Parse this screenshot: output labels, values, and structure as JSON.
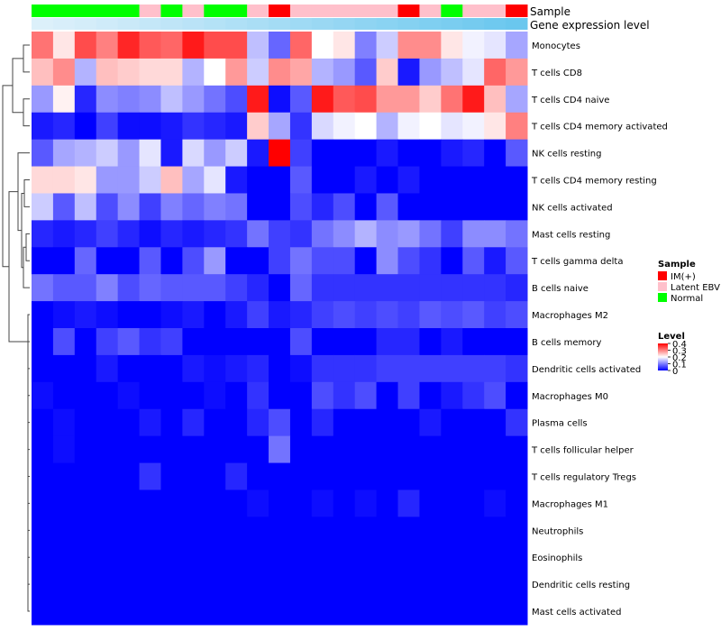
{
  "chart_data": {
    "type": "heatmap",
    "annotation_labels": {
      "sample": "Sample",
      "gene_expression": "Gene expression level"
    },
    "sample_groups": [
      "Normal",
      "Normal",
      "Normal",
      "Normal",
      "Normal",
      "Latent EBV",
      "Normal",
      "Latent EBV",
      "Normal",
      "Normal",
      "Latent EBV",
      "IM(+)",
      "Latent EBV",
      "Latent EBV",
      "Latent EBV",
      "Latent EBV",
      "Latent EBV",
      "IM(+)",
      "Latent EBV",
      "Normal",
      "Latent EBV",
      "Latent EBV",
      "IM(+)"
    ],
    "gene_expression_level": [
      0.05,
      0.08,
      0.11,
      0.15,
      0.19,
      0.23,
      0.27,
      0.31,
      0.35,
      0.39,
      0.43,
      0.47,
      0.51,
      0.55,
      0.59,
      0.63,
      0.67,
      0.71,
      0.75,
      0.79,
      0.83,
      0.87,
      0.91
    ],
    "row_labels": [
      "Monocytes",
      "T cells CD8",
      "T cells CD4 naive",
      "T cells CD4 memory activated",
      "NK cells resting",
      "T cells CD4 memory resting",
      "NK cells activated",
      "Mast cells resting",
      "T cells gamma delta",
      "B cells naive",
      "Macrophages M2",
      "B cells memory",
      "Dendritic cells activated",
      "Macrophages M0",
      "Plasma cells",
      "T cells follicular helper",
      "T cells regulatory  Tregs",
      "Macrophages M1",
      "Neutrophils",
      "Eosinophils",
      "Dendritic cells resting",
      "Mast cells activated"
    ],
    "values": [
      [
        0.31,
        0.22,
        0.34,
        0.3,
        0.37,
        0.33,
        0.32,
        0.38,
        0.34,
        0.34,
        0.15,
        0.08,
        0.32,
        0.2,
        0.22,
        0.1,
        0.16,
        0.29,
        0.29,
        0.22,
        0.19,
        0.18,
        0.13
      ],
      [
        0.25,
        0.29,
        0.14,
        0.25,
        0.24,
        0.23,
        0.23,
        0.14,
        0.2,
        0.28,
        0.16,
        0.29,
        0.27,
        0.14,
        0.12,
        0.07,
        0.24,
        0.02,
        0.12,
        0.15,
        0.18,
        0.32,
        0.28
      ],
      [
        0.12,
        0.21,
        0.03,
        0.11,
        0.1,
        0.11,
        0.15,
        0.12,
        0.09,
        0.06,
        0.38,
        0.01,
        0.07,
        0.38,
        0.33,
        0.34,
        0.28,
        0.28,
        0.24,
        0.31,
        0.38,
        0.25,
        0.13
      ],
      [
        0.02,
        0.03,
        0.0,
        0.05,
        0.01,
        0.01,
        0.02,
        0.04,
        0.03,
        0.02,
        0.24,
        0.13,
        0.04,
        0.17,
        0.19,
        0.2,
        0.14,
        0.19,
        0.2,
        0.18,
        0.19,
        0.22,
        0.3
      ],
      [
        0.07,
        0.13,
        0.14,
        0.16,
        0.12,
        0.18,
        0.02,
        0.17,
        0.12,
        0.16,
        0.02,
        0.4,
        0.05,
        0.0,
        0.0,
        0.0,
        0.02,
        0.0,
        0.0,
        0.02,
        0.03,
        0.0,
        0.07
      ],
      [
        0.23,
        0.23,
        0.22,
        0.12,
        0.12,
        0.16,
        0.25,
        0.13,
        0.18,
        0.02,
        0.0,
        0.0,
        0.07,
        0.0,
        0.0,
        0.02,
        0.0,
        0.02,
        0.0,
        0.0,
        0.0,
        0.0,
        0.0
      ],
      [
        0.16,
        0.07,
        0.15,
        0.06,
        0.11,
        0.05,
        0.1,
        0.08,
        0.1,
        0.09,
        0.0,
        0.0,
        0.06,
        0.03,
        0.06,
        0.0,
        0.07,
        0.0,
        0.0,
        0.0,
        0.0,
        0.0,
        0.0
      ],
      [
        0.03,
        0.02,
        0.03,
        0.05,
        0.03,
        0.01,
        0.03,
        0.02,
        0.03,
        0.04,
        0.09,
        0.05,
        0.04,
        0.09,
        0.11,
        0.14,
        0.11,
        0.12,
        0.09,
        0.05,
        0.11,
        0.11,
        0.09
      ],
      [
        0.0,
        0.0,
        0.08,
        0.0,
        0.0,
        0.07,
        0.0,
        0.06,
        0.12,
        0.0,
        0.0,
        0.05,
        0.09,
        0.06,
        0.06,
        0.0,
        0.11,
        0.06,
        0.04,
        0.0,
        0.07,
        0.02,
        0.07
      ],
      [
        0.09,
        0.07,
        0.07,
        0.1,
        0.06,
        0.08,
        0.07,
        0.07,
        0.07,
        0.05,
        0.03,
        0.0,
        0.08,
        0.04,
        0.04,
        0.04,
        0.04,
        0.04,
        0.04,
        0.04,
        0.04,
        0.04,
        0.03
      ],
      [
        0.0,
        0.01,
        0.02,
        0.01,
        0.0,
        0.0,
        0.01,
        0.02,
        0.0,
        0.02,
        0.05,
        0.02,
        0.03,
        0.05,
        0.06,
        0.05,
        0.06,
        0.05,
        0.07,
        0.06,
        0.07,
        0.05,
        0.06
      ],
      [
        0.0,
        0.06,
        0.0,
        0.05,
        0.07,
        0.04,
        0.05,
        0.0,
        0.0,
        0.0,
        0.0,
        0.0,
        0.06,
        0.0,
        0.0,
        0.0,
        0.03,
        0.03,
        0.0,
        0.02,
        0.0,
        0.0,
        0.0
      ],
      [
        0.0,
        0.0,
        0.0,
        0.02,
        0.0,
        0.0,
        0.0,
        0.02,
        0.01,
        0.02,
        0.03,
        0.0,
        0.01,
        0.04,
        0.04,
        0.04,
        0.05,
        0.05,
        0.05,
        0.05,
        0.05,
        0.05,
        0.04
      ],
      [
        0.01,
        0.0,
        0.0,
        0.0,
        0.01,
        0.0,
        0.0,
        0.0,
        0.01,
        0.0,
        0.04,
        0.0,
        0.0,
        0.06,
        0.04,
        0.06,
        0.0,
        0.05,
        0.0,
        0.02,
        0.04,
        0.06,
        0.0
      ],
      [
        0.0,
        0.01,
        0.0,
        0.0,
        0.0,
        0.02,
        0.0,
        0.03,
        0.0,
        0.0,
        0.03,
        0.06,
        0.0,
        0.03,
        0.0,
        0.0,
        0.0,
        0.0,
        0.02,
        0.0,
        0.0,
        0.0,
        0.04
      ],
      [
        0.0,
        0.01,
        0.0,
        0.0,
        0.0,
        0.0,
        0.0,
        0.0,
        0.0,
        0.0,
        0.0,
        0.09,
        0.0,
        0.0,
        0.0,
        0.0,
        0.0,
        0.0,
        0.0,
        0.0,
        0.0,
        0.0,
        0.0
      ],
      [
        0.0,
        0.0,
        0.0,
        0.0,
        0.0,
        0.04,
        0.0,
        0.0,
        0.0,
        0.03,
        0.0,
        0.0,
        0.0,
        0.0,
        0.0,
        0.0,
        0.0,
        0.0,
        0.0,
        0.0,
        0.0,
        0.0,
        0.0
      ],
      [
        0.0,
        0.0,
        0.0,
        0.0,
        0.0,
        0.0,
        0.0,
        0.0,
        0.0,
        0.0,
        0.01,
        0.0,
        0.0,
        0.01,
        0.0,
        0.01,
        0.0,
        0.03,
        0.0,
        0.0,
        0.0,
        0.01,
        0.0
      ],
      [
        0.0,
        0.0,
        0.0,
        0.0,
        0.0,
        0.0,
        0.0,
        0.0,
        0.0,
        0.0,
        0.0,
        0.0,
        0.0,
        0.0,
        0.0,
        0.0,
        0.0,
        0.0,
        0.0,
        0.0,
        0.0,
        0.0,
        0.0
      ],
      [
        0.0,
        0.0,
        0.0,
        0.0,
        0.0,
        0.0,
        0.0,
        0.0,
        0.0,
        0.0,
        0.0,
        0.0,
        0.0,
        0.0,
        0.0,
        0.0,
        0.0,
        0.0,
        0.0,
        0.0,
        0.0,
        0.0,
        0.0
      ],
      [
        0.0,
        0.0,
        0.0,
        0.0,
        0.0,
        0.0,
        0.0,
        0.0,
        0.0,
        0.0,
        0.0,
        0.0,
        0.0,
        0.0,
        0.0,
        0.0,
        0.0,
        0.0,
        0.0,
        0.0,
        0.0,
        0.0,
        0.0
      ],
      [
        0.0,
        0.0,
        0.0,
        0.0,
        0.0,
        0.0,
        0.0,
        0.0,
        0.0,
        0.0,
        0.0,
        0.0,
        0.0,
        0.0,
        0.0,
        0.0,
        0.0,
        0.0,
        0.0,
        0.0,
        0.0,
        0.0,
        0.0
      ]
    ],
    "color_scale": {
      "min": 0,
      "mid": 0.2,
      "max": 0.4,
      "low": "#0000ff",
      "mid_color": "#ffffff",
      "high": "#ff0000"
    },
    "gene_expression_colors": {
      "low": "#e3f2fb",
      "high": "#5ec3ed"
    },
    "legend": {
      "sample_title": "Sample",
      "sample_items": [
        {
          "label": "IM(+)",
          "color": "#ff0000"
        },
        {
          "label": "Latent EBV",
          "color": "#ffc0cb"
        },
        {
          "label": "Normal",
          "color": "#00ff00"
        }
      ],
      "level_title": "Level",
      "level_ticks": [
        "0.4",
        "0.3",
        "0.2",
        "0.1",
        "0"
      ],
      "level_tick_values": [
        0.4,
        0.3,
        0.2,
        0.1,
        0
      ]
    }
  }
}
